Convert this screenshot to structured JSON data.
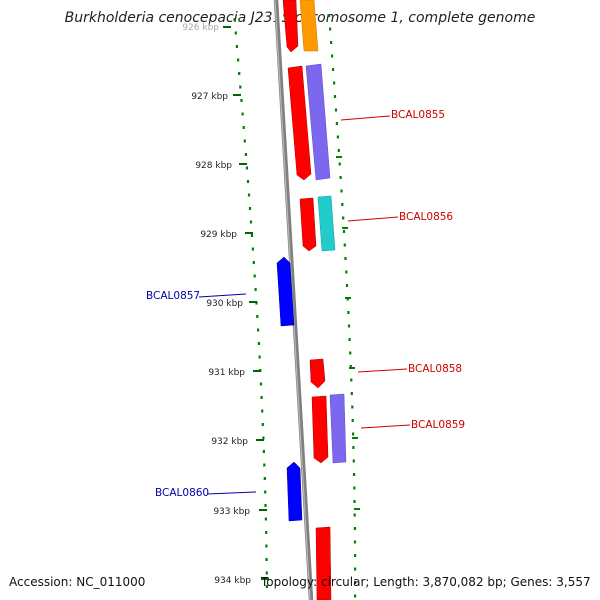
{
  "title": "Burkholderia cenocepacia J2315 chromosome 1, complete genome",
  "footer": {
    "accession": "Accession: NC_011000",
    "topology": "Topology: circular; Length: 3,870,082 bp; Genes: 3,557"
  },
  "kbp_labels": [
    "926 kbp",
    "927 kbp",
    "928 kbp",
    "929 kbp",
    "930 kbp",
    "931 kbp",
    "932 kbp",
    "933 kbp",
    "934 kbp"
  ],
  "gene_labels": [
    {
      "id": "BCAL0855",
      "strand": "forward",
      "color": "#cc0000"
    },
    {
      "id": "BCAL0856",
      "strand": "forward",
      "color": "#cc0000"
    },
    {
      "id": "BCAL0857",
      "strand": "reverse",
      "color": "#0000aa"
    },
    {
      "id": "BCAL0858",
      "strand": "forward",
      "color": "#cc0000"
    },
    {
      "id": "BCAL0859",
      "strand": "forward",
      "color": "#cc0000"
    },
    {
      "id": "BCAL0860",
      "strand": "reverse",
      "color": "#0000aa"
    }
  ],
  "colors": {
    "backbone": "#808080",
    "forward_gene": "#ff0000",
    "reverse_gene": "#0000ff",
    "cog_purple": "#7b68ee",
    "cog_cyan": "#22cccc",
    "cog_orange": "#ff9900",
    "gc_dots": "#008000"
  }
}
